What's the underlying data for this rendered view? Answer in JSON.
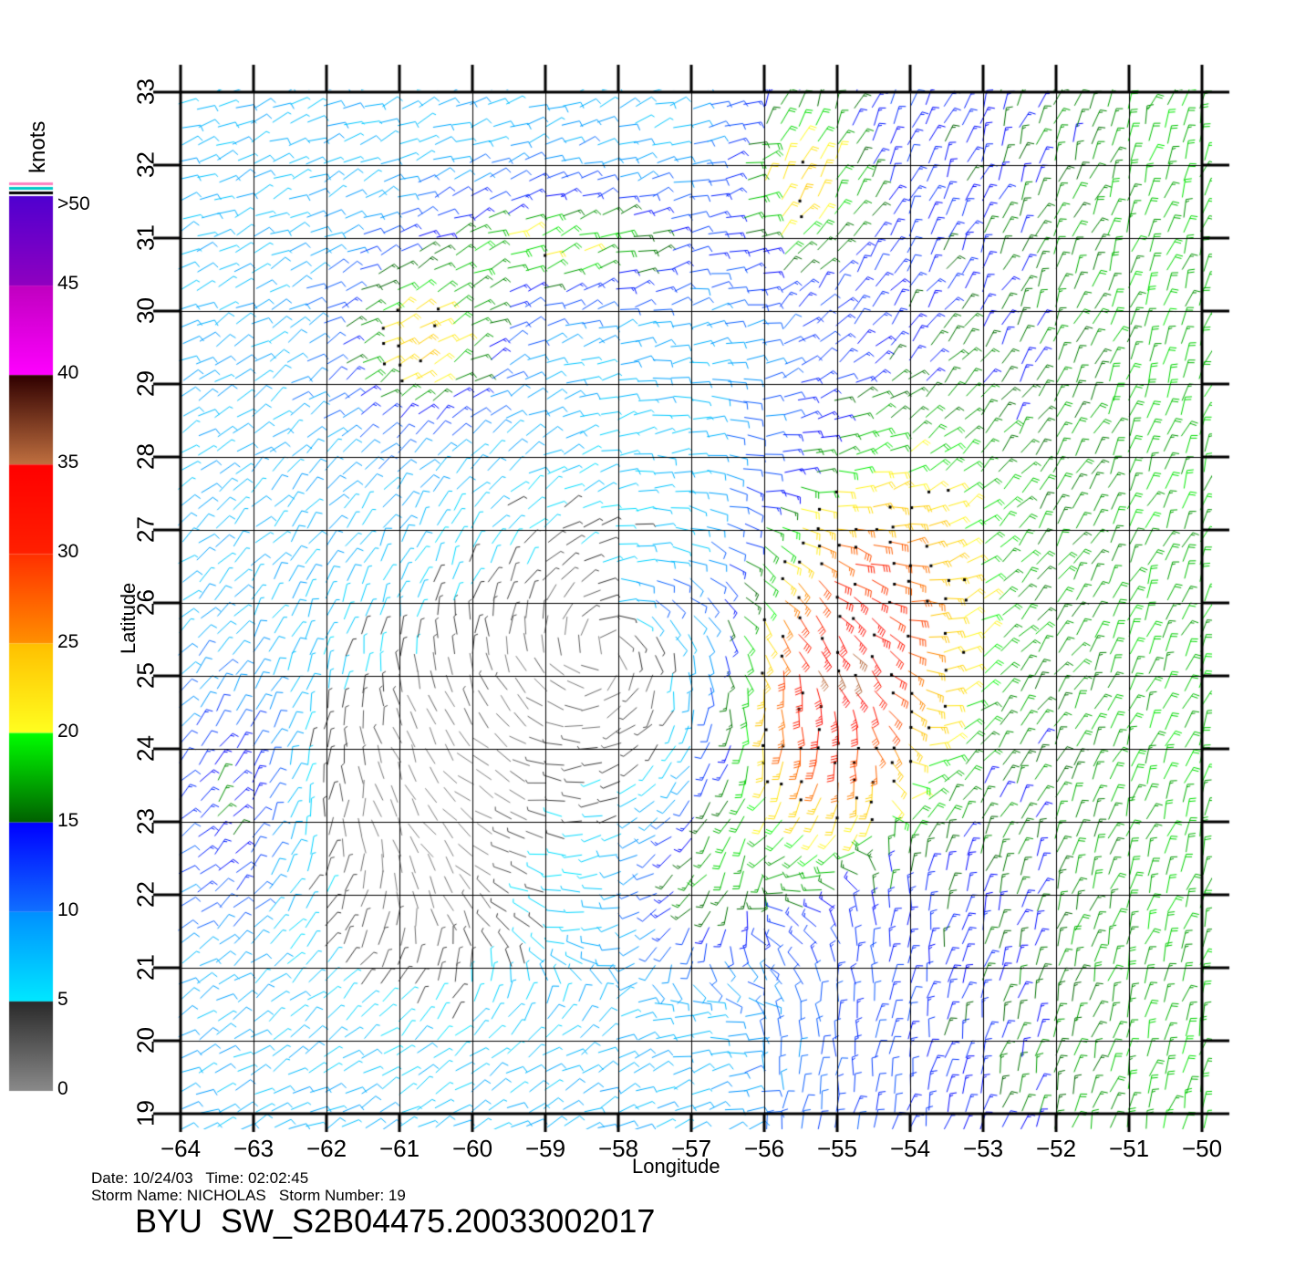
{
  "map": {
    "lon_min": -64,
    "lon_max": -50,
    "lat_min": 19,
    "lat_max": 33,
    "lon_ticks": [
      -64,
      -63,
      -62,
      -61,
      -60,
      -59,
      -58,
      -57,
      -56,
      -55,
      -54,
      -53,
      -52,
      -51,
      -50
    ],
    "lat_ticks": [
      19,
      20,
      21,
      22,
      23,
      24,
      25,
      26,
      27,
      28,
      29,
      30,
      31,
      32,
      33
    ],
    "lon_tick_labels": [
      "−64",
      "−63",
      "−62",
      "−61",
      "−60",
      "−59",
      "−58",
      "−57",
      "−56",
      "−55",
      "−54",
      "−53",
      "−52",
      "−51",
      "−50"
    ],
    "lat_tick_labels": [
      "19",
      "20",
      "21",
      "22",
      "23",
      "24",
      "25",
      "26",
      "27",
      "28",
      "29",
      "30",
      "31",
      "32",
      "33"
    ],
    "xlabel": "Longitude",
    "ylabel": "Latitude",
    "storm_center": {
      "lon": -58.2,
      "lat": 25.3
    }
  },
  "colorbar": {
    "unit": "knots",
    "top_label": ">50",
    "labels": [
      "45",
      "40",
      "35",
      "30",
      "25",
      "20",
      "15",
      "10",
      "5",
      "0"
    ],
    "bands": [
      {
        "from": 0,
        "to": 5,
        "colors": [
          "#8a8a8a",
          "#2a2a2a"
        ]
      },
      {
        "from": 5,
        "to": 10,
        "colors": [
          "#00e8ff",
          "#0090ff"
        ]
      },
      {
        "from": 10,
        "to": 15,
        "colors": [
          "#1070ff",
          "#0000ff"
        ]
      },
      {
        "from": 15,
        "to": 20,
        "colors": [
          "#006000",
          "#00ff00"
        ]
      },
      {
        "from": 20,
        "to": 25,
        "colors": [
          "#ffff20",
          "#ffc000"
        ]
      },
      {
        "from": 25,
        "to": 30,
        "colors": [
          "#ff9000",
          "#ff3000"
        ]
      },
      {
        "from": 30,
        "to": 35,
        "colors": [
          "#ff2000",
          "#ff0000"
        ]
      },
      {
        "from": 35,
        "to": 40,
        "colors": [
          "#c07040",
          "#300000"
        ]
      },
      {
        "from": 40,
        "to": 45,
        "colors": [
          "#ff00ff",
          "#c000c0"
        ]
      },
      {
        "from": 45,
        "to": 50,
        "colors": [
          "#9000c0",
          "#5000d0"
        ]
      }
    ],
    "cap_colors": [
      "#ff80c0",
      "#00c8c8",
      "#000000"
    ]
  },
  "info": {
    "date_line": "Date: 10/24/03   Time: 02:02:45",
    "storm_line": "Storm Name: NICHOLAS   Storm Number: 19",
    "title": "BYU  SW_S2B04475.20033002017"
  },
  "colors": {
    "grid": "#000000",
    "background": "#ffffff"
  }
}
